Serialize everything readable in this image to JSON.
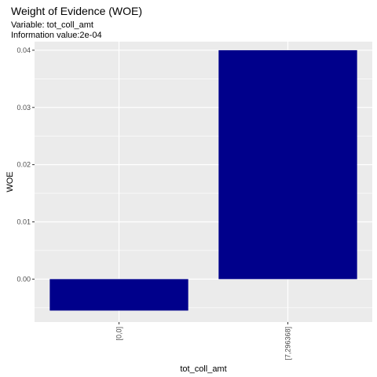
{
  "chart_data": {
    "type": "bar",
    "title": "Weight of Evidence (WOE)",
    "subtitle_lines": [
      "Variable: tot_coll_amt",
      "Information value:2e-04"
    ],
    "xlabel": "tot_coll_amt",
    "ylabel": "WOE",
    "categories": [
      "[0,0]",
      "[7,296368]"
    ],
    "values": [
      -0.0055,
      0.04
    ],
    "ylim": [
      -0.0075,
      0.0415
    ],
    "yticks": [
      0,
      0.01,
      0.02,
      0.03,
      0.04
    ],
    "ytick_labels": [
      "0.00",
      "0.01",
      "0.02",
      "0.03",
      "0.04"
    ],
    "grid": true,
    "bar_color": "#00008B",
    "panel_color": "#EBEBEB",
    "grid_color": "#FFFFFF"
  }
}
